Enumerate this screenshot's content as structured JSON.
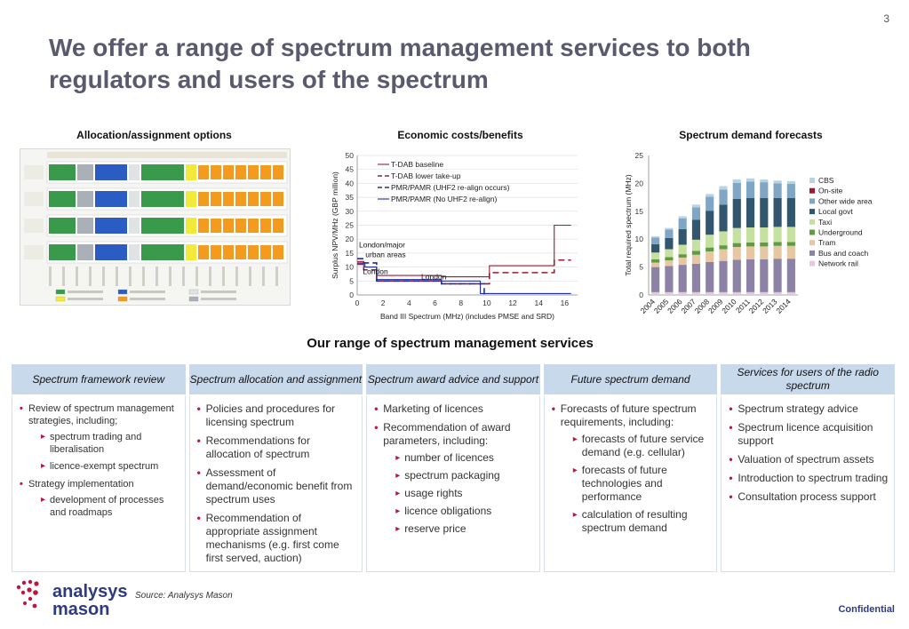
{
  "page_number": "3",
  "title": "We offer a range of spectrum management services to both regulators and users of the spectrum",
  "headings": {
    "allocation": "Allocation/assignment options",
    "economic": "Economic costs/benefits",
    "demand": "Spectrum demand forecasts"
  },
  "allocation_image": {
    "block_colors": [
      "#3a9a4c",
      "#2b5cc4",
      "#f2e93a",
      "#f29b1e",
      "#a9b0b7",
      "#dfe3e6"
    ]
  },
  "section_title": "Our range of spectrum management services",
  "colors": {
    "header_bg": "#c9d9ec",
    "bullet": "#c0143c",
    "title": "#5a5a6e",
    "logo_blue": "#2e3b80",
    "logo_dots": "#c0143c"
  },
  "services": [
    {
      "header": "Spectrum framework review",
      "items": [
        {
          "text": "Review of spectrum management strategies, including;",
          "sub": [
            "spectrum trading and liberalisation",
            "licence-exempt spectrum"
          ]
        },
        {
          "text": "Strategy implementation",
          "sub": [
            "development of processes and roadmaps"
          ]
        }
      ]
    },
    {
      "header": "Spectrum allocation and assignment",
      "items": [
        {
          "text": "Policies and procedures for licensing spectrum",
          "sub": []
        },
        {
          "text": "Recommendations for allocation of spectrum",
          "sub": []
        },
        {
          "text": "Assessment of demand/economic benefit from spectrum uses",
          "sub": []
        },
        {
          "text": "Recommendation of appropriate assignment mechanisms (e.g. first come first served, auction)",
          "sub": []
        }
      ]
    },
    {
      "header": "Spectrum award advice and support",
      "items": [
        {
          "text": "Marketing of licences",
          "sub": []
        },
        {
          "text": "Recommendation of award parameters, including:",
          "sub": [
            "number of licences",
            "spectrum packaging",
            "usage rights",
            "licence obligations",
            "reserve price"
          ]
        }
      ]
    },
    {
      "header": "Future spectrum demand",
      "items": [
        {
          "text": "Forecasts of future spectrum requirements, including:",
          "sub": [
            "forecasts of future service demand (e.g. cellular)",
            "forecasts of future technologies and performance",
            "calculation of resulting spectrum demand"
          ]
        }
      ]
    },
    {
      "header": "Services for users of the radio spectrum",
      "items": [
        {
          "text": "Spectrum strategy advice",
          "sub": []
        },
        {
          "text": "Spectrum licence acquisition support",
          "sub": []
        },
        {
          "text": "Valuation of spectrum assets",
          "sub": []
        },
        {
          "text": "Introduction to spectrum trading",
          "sub": []
        },
        {
          "text": "Consultation process support",
          "sub": []
        }
      ]
    }
  ],
  "footer": {
    "source": "Source: Analysys Mason",
    "confidential": "Confidential",
    "logo_line1": "analysys",
    "logo_line2": "mason"
  },
  "chart_data": [
    {
      "type": "line",
      "title": "",
      "xlabel": "Band III Spectrum (MHz) (includes PMSE and SRD)",
      "ylabel": "Surplus NPV/MHz (GBP million)",
      "xlim": [
        0,
        17
      ],
      "ylim": [
        0,
        50
      ],
      "xticks": [
        0,
        2,
        4,
        6,
        8,
        10,
        12,
        14,
        16
      ],
      "yticks": [
        0,
        5,
        10,
        15,
        20,
        25,
        30,
        35,
        40,
        45,
        50
      ],
      "grid": true,
      "legend_position": "top-left",
      "annotations": [
        {
          "text": "London/major",
          "x": 0,
          "y": 17
        },
        {
          "text": "urban areas",
          "x": 0.5,
          "y": 13.5
        },
        {
          "text": "London",
          "x": 0.3,
          "y": 7.5
        },
        {
          "text": "London",
          "x": 4.8,
          "y": 5.5
        }
      ],
      "series": [
        {
          "name": "T-DAB baseline",
          "color": "#9b1b30",
          "dash": "solid",
          "points": [
            [
              0,
              12
            ],
            [
              0.5,
              12
            ],
            [
              0.5,
              10
            ],
            [
              1.5,
              10
            ],
            [
              1.5,
              7
            ],
            [
              6.5,
              7
            ],
            [
              6.5,
              6.5
            ],
            [
              10.2,
              6.5
            ],
            [
              10.2,
              10.5
            ],
            [
              15.2,
              10.5
            ],
            [
              15.2,
              25
            ],
            [
              16.5,
              25
            ]
          ]
        },
        {
          "name": "T-DAB lower take-up",
          "color": "#9b1b30",
          "dash": "dashed",
          "points": [
            [
              0,
              11
            ],
            [
              0.5,
              11
            ],
            [
              0.5,
              9
            ],
            [
              1.5,
              9
            ],
            [
              1.5,
              5
            ],
            [
              6.5,
              5
            ],
            [
              6.5,
              4
            ],
            [
              10.2,
              4
            ],
            [
              10.2,
              8
            ],
            [
              15.2,
              8
            ],
            [
              15.2,
              12.5
            ],
            [
              16.5,
              12.5
            ]
          ]
        },
        {
          "name": "PMR/PAMR (UHF2 re-align occurs)",
          "color": "#1f2fa0",
          "dash": "dashed",
          "points": [
            [
              0,
              13
            ],
            [
              0.5,
              13
            ],
            [
              0.5,
              11.5
            ],
            [
              1.5,
              11.5
            ],
            [
              1.5,
              5
            ],
            [
              6.5,
              5
            ],
            [
              6.5,
              4
            ],
            [
              9.8,
              4
            ],
            [
              9.8,
              0
            ]
          ]
        },
        {
          "name": "PMR/PAMR (No UHF2 re-align)",
          "color": "#1f2fa0",
          "dash": "solid",
          "points": [
            [
              0,
              11.5
            ],
            [
              0.6,
              11.5
            ],
            [
              0.6,
              10
            ],
            [
              1.5,
              10
            ],
            [
              1.5,
              5.5
            ],
            [
              6.5,
              5.5
            ],
            [
              6.5,
              5
            ],
            [
              9.5,
              5
            ],
            [
              9.5,
              0.5
            ],
            [
              16.5,
              0.5
            ]
          ]
        }
      ]
    },
    {
      "type": "bar",
      "stacked": true,
      "title": "",
      "xlabel": "",
      "ylabel": "Total required spectrum (MHz)",
      "ylim": [
        0,
        25
      ],
      "yticks": [
        0,
        5,
        10,
        15,
        20,
        25
      ],
      "legend_position": "right",
      "categories": [
        "2004",
        "2005",
        "2006",
        "2007",
        "2008",
        "2009",
        "2010",
        "2011",
        "2012",
        "2013",
        "2014"
      ],
      "series": [
        {
          "name": "Network rail",
          "color": "#e8c6dd",
          "values": [
            0.5,
            0.5,
            0.5,
            0.5,
            0.5,
            0.5,
            0.5,
            0.5,
            0.5,
            0.5,
            0.5
          ]
        },
        {
          "name": "Bus and coach",
          "color": "#8b82a6",
          "values": [
            4.5,
            4.7,
            4.9,
            5.1,
            5.4,
            5.6,
            5.8,
            5.9,
            5.9,
            6.0,
            6.0
          ]
        },
        {
          "name": "Tram",
          "color": "#e7c7a3",
          "values": [
            0.8,
            1.0,
            1.3,
            1.6,
            1.9,
            2.1,
            2.3,
            2.3,
            2.3,
            2.3,
            2.3
          ]
        },
        {
          "name": "Underground",
          "color": "#5f9b3f",
          "values": [
            0.6,
            0.6,
            0.6,
            0.7,
            0.7,
            0.7,
            0.7,
            0.7,
            0.7,
            0.7,
            0.7
          ]
        },
        {
          "name": "Taxi",
          "color": "#c6e0a0",
          "values": [
            1.2,
            1.4,
            1.7,
            2.0,
            2.3,
            2.5,
            2.7,
            2.7,
            2.7,
            2.7,
            2.7
          ]
        },
        {
          "name": "Local govt",
          "color": "#33566f",
          "values": [
            1.5,
            2.0,
            2.8,
            3.6,
            4.3,
            4.8,
            5.2,
            5.3,
            5.3,
            5.2,
            5.2
          ]
        },
        {
          "name": "Other wide area",
          "color": "#7fa6c4",
          "values": [
            1.2,
            1.5,
            1.9,
            2.2,
            2.5,
            2.7,
            2.9,
            2.9,
            2.8,
            2.6,
            2.5
          ]
        },
        {
          "name": "On-site",
          "color": "#9b1b30",
          "values": [
            0,
            0,
            0,
            0,
            0,
            0,
            0,
            0,
            0,
            0,
            0
          ]
        },
        {
          "name": "CBS",
          "color": "#b9d3e2",
          "values": [
            0.2,
            0.3,
            0.4,
            0.5,
            0.5,
            0.6,
            0.6,
            0.6,
            0.5,
            0.5,
            0.5
          ]
        }
      ]
    }
  ]
}
